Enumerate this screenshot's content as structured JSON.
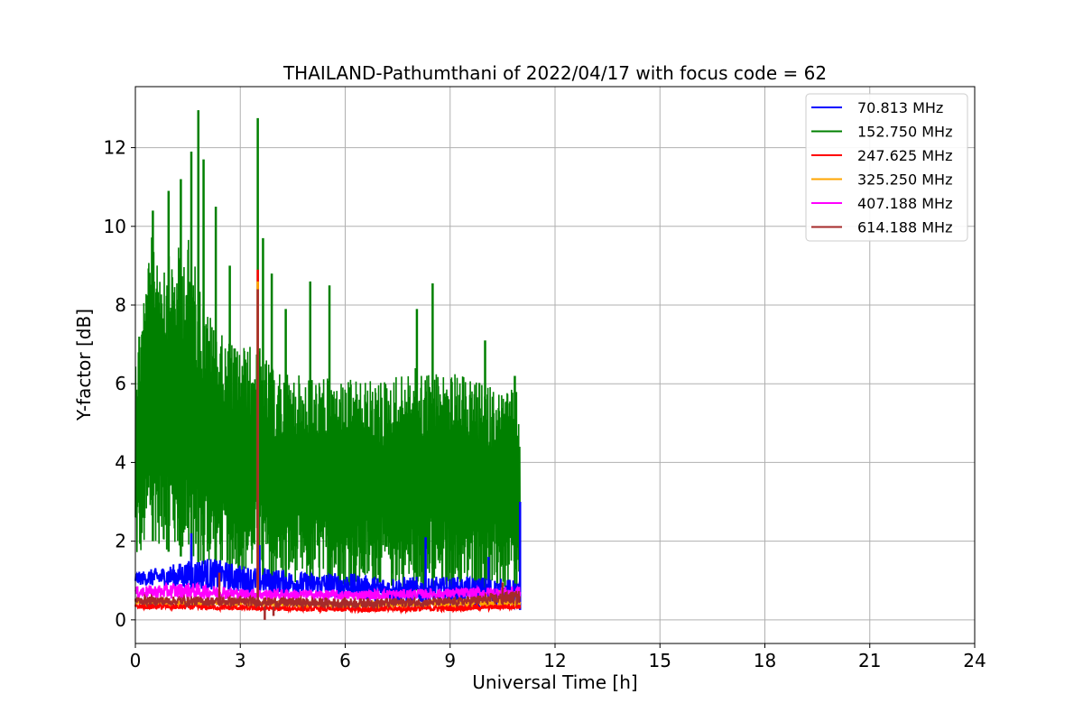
{
  "chart_data": {
    "type": "line",
    "title": "THAILAND-Pathumthani of 2022/04/17 with focus code = 62",
    "xlabel": "Universal Time [h]",
    "ylabel": "Y-factor [dB]",
    "xlim": [
      0,
      24
    ],
    "ylim": [
      -0.6,
      13.55
    ],
    "xticks": [
      0,
      3,
      6,
      9,
      12,
      15,
      18,
      21,
      24
    ],
    "yticks": [
      0,
      2,
      4,
      6,
      8,
      10,
      12
    ],
    "grid": true,
    "legend_position": "top-right",
    "data_end_hour": 11.0,
    "series": [
      {
        "name": "  70.813 MHz",
        "color": "#0000ff",
        "low": [
          [
            0,
            0.9
          ],
          [
            1,
            0.8
          ],
          [
            2,
            0.75
          ],
          [
            3,
            0.7
          ],
          [
            4,
            0.65
          ],
          [
            5,
            0.6
          ],
          [
            6,
            0.55
          ],
          [
            7,
            0.45
          ],
          [
            8,
            0.4
          ],
          [
            9,
            0.35
          ],
          [
            10,
            0.3
          ],
          [
            11,
            0.25
          ]
        ],
        "high": [
          [
            0,
            1.2
          ],
          [
            1,
            1.4
          ],
          [
            2,
            1.6
          ],
          [
            3,
            1.4
          ],
          [
            4,
            1.3
          ],
          [
            5,
            1.2
          ],
          [
            6,
            1.2
          ],
          [
            7,
            1.1
          ],
          [
            8,
            1.1
          ],
          [
            9,
            1.1
          ],
          [
            10,
            1.1
          ],
          [
            11,
            1.0
          ]
        ],
        "spikes": [
          [
            1.6,
            2.2
          ],
          [
            3.55,
            1.9
          ],
          [
            8.3,
            2.1
          ],
          [
            10.1,
            1.6
          ],
          [
            11.0,
            3.0
          ]
        ]
      },
      {
        "name": "152.750 MHz",
        "color": "#008000",
        "low": [
          [
            0,
            1.3
          ],
          [
            0.5,
            2.0
          ],
          [
            1,
            1.7
          ],
          [
            2,
            1.4
          ],
          [
            3,
            1.2
          ],
          [
            4,
            1.0
          ],
          [
            5,
            0.9
          ],
          [
            6,
            0.85
          ],
          [
            7,
            0.8
          ],
          [
            8,
            0.75
          ],
          [
            9,
            0.7
          ],
          [
            10,
            0.65
          ],
          [
            11,
            0.6
          ]
        ],
        "high": [
          [
            0,
            7.0
          ],
          [
            0.5,
            10.0
          ],
          [
            1,
            9.2
          ],
          [
            1.5,
            9.8
          ],
          [
            2,
            8.0
          ],
          [
            2.5,
            7.2
          ],
          [
            3,
            7.0
          ],
          [
            3.5,
            7.0
          ],
          [
            4,
            6.3
          ],
          [
            5,
            6.2
          ],
          [
            6,
            6.1
          ],
          [
            7,
            6.1
          ],
          [
            8,
            6.4
          ],
          [
            9,
            6.3
          ],
          [
            10,
            6.0
          ],
          [
            11,
            5.8
          ]
        ],
        "spikes": [
          [
            0.5,
            10.4
          ],
          [
            0.95,
            10.9
          ],
          [
            1.3,
            11.2
          ],
          [
            1.6,
            11.9
          ],
          [
            1.8,
            12.95
          ],
          [
            1.95,
            11.7
          ],
          [
            2.3,
            10.5
          ],
          [
            2.7,
            9.0
          ],
          [
            3.5,
            12.75
          ],
          [
            3.65,
            9.7
          ],
          [
            3.9,
            8.8
          ],
          [
            4.3,
            7.9
          ],
          [
            5.0,
            8.6
          ],
          [
            5.55,
            8.5
          ],
          [
            8.05,
            7.9
          ],
          [
            8.5,
            8.55
          ],
          [
            10.0,
            7.1
          ],
          [
            10.85,
            6.2
          ]
        ]
      },
      {
        "name": "247.625 MHz",
        "color": "#ff0000",
        "low": [
          [
            0,
            0.28
          ],
          [
            3,
            0.24
          ],
          [
            6,
            0.2
          ],
          [
            9,
            0.22
          ],
          [
            11,
            0.28
          ]
        ],
        "high": [
          [
            0,
            0.42
          ],
          [
            3,
            0.38
          ],
          [
            6,
            0.34
          ],
          [
            9,
            0.38
          ],
          [
            11,
            0.42
          ]
        ],
        "spikes": [
          [
            3.5,
            8.9
          ]
        ]
      },
      {
        "name": "325.250 MHz",
        "color": "#ffa500",
        "low": [
          [
            0,
            0.4
          ],
          [
            3,
            0.38
          ],
          [
            6,
            0.34
          ],
          [
            9,
            0.36
          ],
          [
            11,
            0.38
          ]
        ],
        "high": [
          [
            0,
            0.5
          ],
          [
            3,
            0.48
          ],
          [
            6,
            0.44
          ],
          [
            9,
            0.48
          ],
          [
            11,
            0.55
          ]
        ],
        "spikes": [
          [
            3.5,
            8.6
          ],
          [
            10.4,
            0.75
          ]
        ]
      },
      {
        "name": "407.188 MHz",
        "color": "#ff00ff",
        "low": [
          [
            0,
            0.55
          ],
          [
            3,
            0.52
          ],
          [
            6,
            0.5
          ],
          [
            9,
            0.55
          ],
          [
            11,
            0.55
          ]
        ],
        "high": [
          [
            0,
            0.85
          ],
          [
            1.5,
            0.95
          ],
          [
            3,
            0.8
          ],
          [
            6,
            0.75
          ],
          [
            9,
            0.8
          ],
          [
            11,
            0.85
          ]
        ],
        "spikes": []
      },
      {
        "name": "614.188 MHz",
        "color": "#a52a2a",
        "low": [
          [
            0,
            0.38
          ],
          [
            3,
            0.35
          ],
          [
            6,
            0.3
          ],
          [
            9,
            0.35
          ],
          [
            11,
            0.4
          ]
        ],
        "high": [
          [
            0,
            0.6
          ],
          [
            3,
            0.58
          ],
          [
            6,
            0.55
          ],
          [
            9,
            0.55
          ],
          [
            11,
            0.75
          ]
        ],
        "spikes": [
          [
            2.4,
            1.2
          ],
          [
            3.5,
            8.4
          ],
          [
            3.7,
            0.0
          ],
          [
            3.95,
            0.1
          ],
          [
            10.5,
            0.95
          ]
        ]
      }
    ]
  }
}
